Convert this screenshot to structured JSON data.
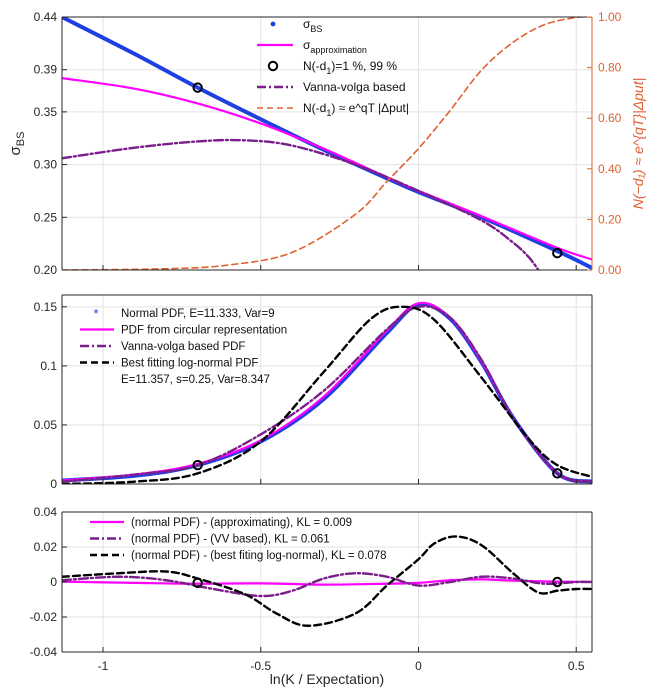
{
  "chart_data": [
    {
      "type": "line",
      "panel": "top",
      "ylabel": "σ",
      "ylabel_sub": "BS",
      "xlim": [
        -1.13,
        0.55
      ],
      "ylim": [
        0.2,
        0.44
      ],
      "yticks": [
        "0.20",
        "0.25",
        "0.30",
        "0.35",
        "0.39",
        "0.44"
      ],
      "ytick_values": [
        0.2,
        0.25,
        0.3,
        0.35,
        0.39,
        0.44
      ],
      "right_ylabel": "N(−d₁) ≈ e^{qT}|Δput|",
      "right_ylim": [
        0,
        1
      ],
      "right_yticks": [
        "0.00",
        "0.20",
        "0.40",
        "0.60",
        "0.80",
        "1.00"
      ],
      "right_ytick_values": [
        0,
        0.2,
        0.4,
        0.6,
        0.8,
        1.0
      ],
      "legend_position": "top-center",
      "legend": [
        {
          "base": "σ",
          "sub": "BS",
          "rest": ""
        },
        {
          "base": "σ",
          "sub": "approximation",
          "rest": ""
        },
        {
          "base": "N(-d",
          "sub": "1",
          "rest": ")=1 %, 99 %"
        },
        {
          "base": "Vanna-volga based",
          "sub": "",
          "rest": ""
        },
        {
          "base": "N(-d",
          "sub": "1",
          "rest": ") ≈ e^qT |Δput|"
        }
      ],
      "series": [
        {
          "name": "sigma_BS",
          "color": "#1f3fe0",
          "x": [
            -1.13,
            -0.9,
            -0.7,
            -0.5,
            -0.3,
            -0.1,
            0,
            0.2,
            0.44,
            0.55
          ],
          "y": [
            0.44,
            0.405,
            0.373,
            0.343,
            0.314,
            0.287,
            0.274,
            0.25,
            0.218,
            0.202
          ]
        },
        {
          "name": "sigma_approximation",
          "color": "#ff00ff",
          "x": [
            -1.13,
            -0.9,
            -0.7,
            -0.5,
            -0.3,
            -0.1,
            0,
            0.2,
            0.44,
            0.55
          ],
          "y": [
            0.382,
            0.372,
            0.358,
            0.339,
            0.315,
            0.288,
            0.275,
            0.251,
            0.221,
            0.21
          ]
        },
        {
          "name": "vanna_volga",
          "color": "#7a1f8a",
          "x": [
            -1.13,
            -0.9,
            -0.7,
            -0.55,
            -0.4,
            -0.2,
            0,
            0.2,
            0.3,
            0.35,
            0.38
          ],
          "y": [
            0.306,
            0.316,
            0.322,
            0.323,
            0.318,
            0.3,
            0.275,
            0.247,
            0.226,
            0.212,
            0.2
          ]
        },
        {
          "name": "N(-d1)",
          "color": "#e06030",
          "axis": "right",
          "x": [
            -1.13,
            -0.8,
            -0.6,
            -0.4,
            -0.2,
            -0.1,
            0,
            0.1,
            0.2,
            0.3,
            0.4,
            0.5,
            0.55
          ],
          "y": [
            0.0,
            0.005,
            0.02,
            0.07,
            0.22,
            0.35,
            0.48,
            0.63,
            0.79,
            0.9,
            0.97,
            0.998,
            1.0
          ]
        }
      ],
      "markers": {
        "x": [
          -0.7,
          0.44
        ],
        "y": [
          0.373,
          0.216
        ]
      }
    },
    {
      "type": "line",
      "panel": "middle",
      "xlim": [
        -1.13,
        0.55
      ],
      "ylim": [
        0,
        0.16
      ],
      "yticks": [
        "0",
        "0.05",
        "0.1",
        "0.15"
      ],
      "ytick_values": [
        0,
        0.05,
        0.1,
        0.15
      ],
      "legend_position": "top-left",
      "legend": [
        "Normal PDF, E=11.333, Var=9",
        "PDF from circular representation",
        "Vanna-volga based PDF",
        "Best fitting log-normal PDF",
        "E=11.357, s=0.25, Var=8.347"
      ],
      "series": [
        {
          "name": "normal_pdf",
          "color": "#1f3fe0",
          "x": [
            -1.13,
            -0.9,
            -0.7,
            -0.5,
            -0.3,
            -0.1,
            0,
            0.1,
            0.2,
            0.3,
            0.44,
            0.55
          ],
          "y": [
            0.003,
            0.007,
            0.016,
            0.036,
            0.072,
            0.128,
            0.152,
            0.14,
            0.103,
            0.056,
            0.009,
            0.002
          ]
        },
        {
          "name": "circular_pdf",
          "color": "#ff00ff",
          "x": [
            -1.13,
            -0.9,
            -0.7,
            -0.5,
            -0.3,
            -0.1,
            0,
            0.1,
            0.2,
            0.3,
            0.44,
            0.55
          ],
          "y": [
            0.003,
            0.008,
            0.017,
            0.037,
            0.074,
            0.13,
            0.153,
            0.141,
            0.104,
            0.056,
            0.009,
            0.002
          ]
        },
        {
          "name": "vv_pdf",
          "color": "#7a1f8a",
          "x": [
            -1.13,
            -0.9,
            -0.7,
            -0.5,
            -0.3,
            -0.1,
            0,
            0.1,
            0.2,
            0.3,
            0.44,
            0.55
          ],
          "y": [
            0.002,
            0.008,
            0.016,
            0.042,
            0.079,
            0.131,
            0.15,
            0.141,
            0.105,
            0.056,
            0.009,
            0.002
          ]
        },
        {
          "name": "lognormal_pdf",
          "color": "#000000",
          "x": [
            -1.13,
            -0.9,
            -0.7,
            -0.5,
            -0.3,
            -0.15,
            -0.05,
            0.05,
            0.2,
            0.35,
            0.44,
            0.55
          ],
          "y": [
            0.0,
            0.002,
            0.009,
            0.036,
            0.095,
            0.14,
            0.15,
            0.139,
            0.09,
            0.038,
            0.016,
            0.006
          ]
        }
      ],
      "markers": {
        "x": [
          -0.7,
          0.44
        ],
        "y": [
          0.016,
          0.009
        ]
      }
    },
    {
      "type": "line",
      "panel": "bottom",
      "xlabel": "ln(K / Expectation)",
      "xlim": [
        -1.13,
        0.55
      ],
      "xticks": [
        "-1",
        "-0.5",
        "0",
        "0.5"
      ],
      "xtick_values": [
        -1,
        -0.5,
        0,
        0.5
      ],
      "ylim": [
        -0.04,
        0.04
      ],
      "yticks": [
        "-0.04",
        "-0.02",
        "0",
        "0.02",
        "0.04"
      ],
      "ytick_values": [
        -0.04,
        -0.02,
        0,
        0.02,
        0.04
      ],
      "legend_position": "top-left",
      "legend": [
        "(normal PDF) - (approximating), KL = 0.009",
        "(normal PDF) - (VV based), KL = 0.061",
        "(normal PDF) - (best fiting log-normal), KL = 0.078"
      ],
      "series": [
        {
          "name": "diff_approx",
          "color": "#ff00ff",
          "x": [
            -1.13,
            -0.9,
            -0.7,
            -0.5,
            -0.3,
            -0.1,
            0,
            0.1,
            0.2,
            0.3,
            0.44,
            0.55
          ],
          "y": [
            0.0002,
            -0.0005,
            -0.001,
            -0.0008,
            -0.0015,
            -0.001,
            -0.0005,
            0.001,
            0.0015,
            0.0008,
            0.0002,
            0.0
          ]
        },
        {
          "name": "diff_vv",
          "color": "#7a1f8a",
          "x": [
            -1.13,
            -0.95,
            -0.8,
            -0.65,
            -0.5,
            -0.4,
            -0.3,
            -0.2,
            -0.1,
            0,
            0.1,
            0.2,
            0.3,
            0.4,
            0.5,
            0.55
          ],
          "y": [
            0.001,
            0.003,
            0.001,
            -0.004,
            -0.008,
            -0.005,
            0.002,
            0.005,
            0.003,
            -0.002,
            0.0,
            0.003,
            0.002,
            -0.001,
            0.0,
            0.0
          ]
        },
        {
          "name": "diff_lognormal",
          "color": "#000000",
          "x": [
            -1.13,
            -0.95,
            -0.8,
            -0.7,
            -0.55,
            -0.45,
            -0.35,
            -0.2,
            -0.1,
            0,
            0.05,
            0.12,
            0.2,
            0.3,
            0.38,
            0.44,
            0.5,
            0.55
          ],
          "y": [
            0.003,
            0.005,
            0.006,
            0.002,
            -0.007,
            -0.018,
            -0.025,
            -0.018,
            -0.002,
            0.013,
            0.022,
            0.026,
            0.021,
            0.005,
            -0.006,
            -0.005,
            -0.004,
            -0.004
          ]
        }
      ],
      "markers": {
        "x": [
          -0.7,
          0.44
        ],
        "y": [
          -0.0005,
          0.0
        ]
      }
    }
  ]
}
